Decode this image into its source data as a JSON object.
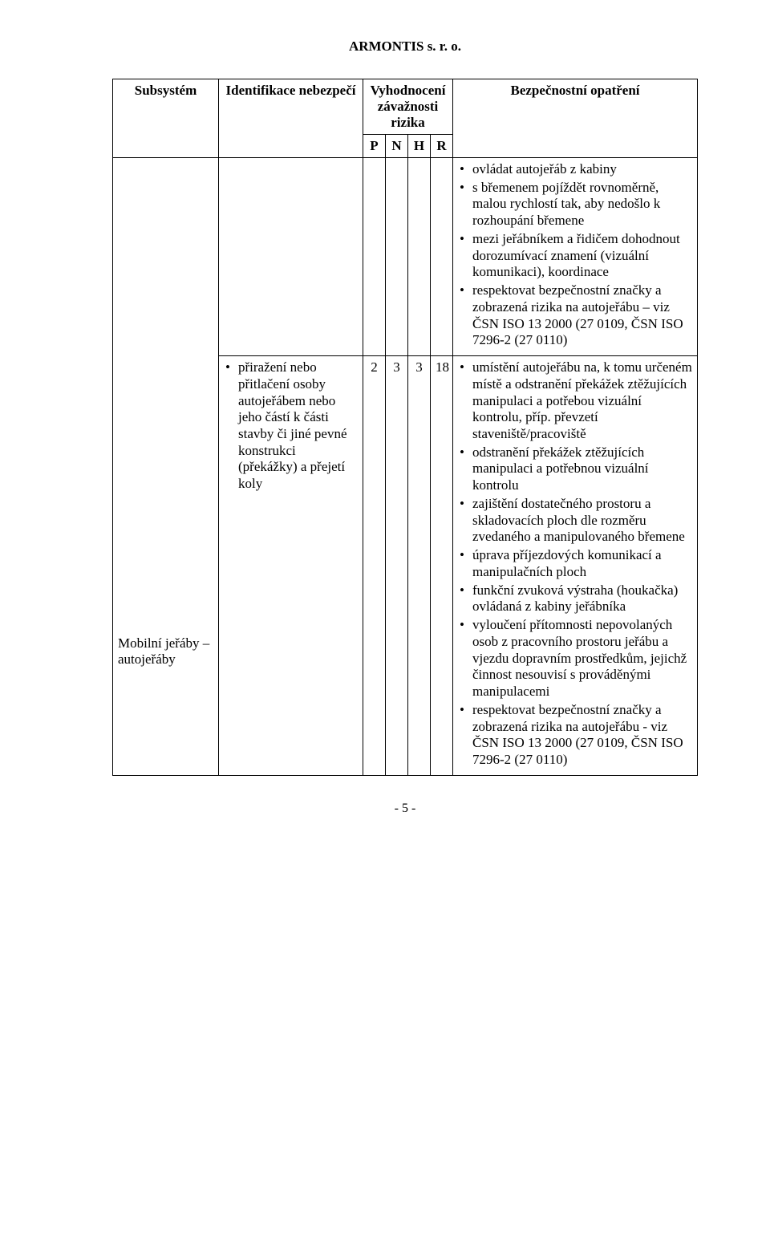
{
  "doc": {
    "company": "ARMONTIS s. r. o.",
    "page_footer": "- 5 -"
  },
  "table": {
    "headers": {
      "subsystem": "Subsystém",
      "ident": "Identifikace nebezpečí",
      "eval_group": "Vyhodnocení závažnosti rizika",
      "p": "P",
      "n": "N",
      "h": "H",
      "r": "R",
      "measure": "Bezpečnostní opatření"
    },
    "row": {
      "subsystem": "Mobilní jeřáby – autojeřáby",
      "ident_bullets": [
        "přiražení nebo přitlačení osoby autojeřábem nebo jeho částí k části stavby či jiné pevné konstrukci (překážky) a přejetí koly"
      ],
      "p": "2",
      "n": "3",
      "h": "3",
      "r": "18",
      "measures_top": [
        "ovládat autojeřáb z kabiny",
        "s břemenem pojíždět rovnoměrně, malou rychlostí tak, aby nedošlo k rozhoupání břemene",
        "mezi jeřábníkem a řidičem dohodnout dorozumívací znamení (vizuální komunikaci), koordinace",
        "respektovat bezpečnostní značky a zobrazená rizika na autojeřábu – viz ČSN ISO 13 2000 (27 0109, ČSN ISO 7296-2 (27 0110)"
      ],
      "measures_bottom": [
        "umístění autojeřábu na, k tomu určeném místě a odstranění překážek ztěžujících manipulaci a potřebou vizuální kontrolu, příp. převzetí staveniště/pracoviště",
        "odstranění překážek ztěžujících manipulaci a potřebnou vizuální kontrolu",
        "zajištění dostatečného prostoru a skladovacích ploch dle rozměru zvedaného a manipulovaného břemene",
        "úprava příjezdových komunikací a manipulačních ploch",
        "funkční zvuková výstraha (houkačka) ovládaná z kabiny jeřábníka",
        "vyloučení přítomnosti nepovolaných osob z pracovního prostoru jeřábu a vjezdu dopravním prostředkům, jejichž činnost nesouvisí s prováděnými manipulacemi",
        "respektovat bezpečnostní značky a zobrazená rizika na autojeřábu - viz ČSN ISO 13 2000 (27 0109, ČSN ISO 7296-2 (27 0110)"
      ]
    }
  }
}
